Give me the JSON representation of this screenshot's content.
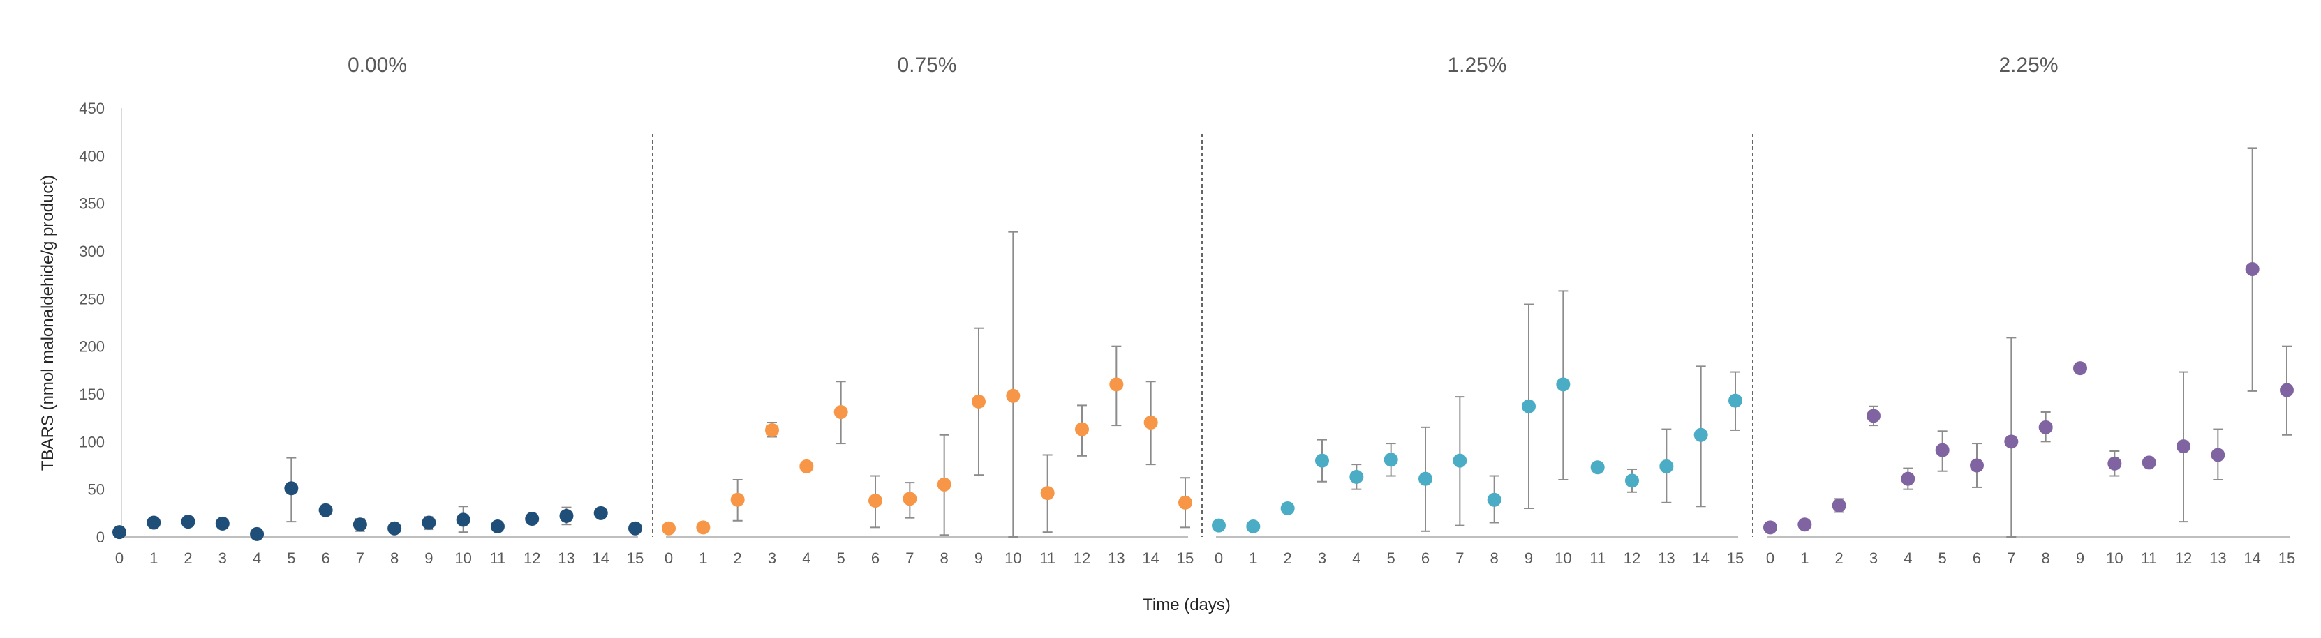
{
  "chart_data": {
    "type": "scatter",
    "xlabel": "Time (days)",
    "ylabel": "TBARS (nmol malonaldehide/g  product)",
    "ylim": [
      0,
      450
    ],
    "yticks": [
      0,
      50,
      100,
      150,
      200,
      250,
      300,
      350,
      400,
      450
    ],
    "x": [
      0,
      1,
      2,
      3,
      4,
      5,
      6,
      7,
      8,
      9,
      10,
      11,
      12,
      13,
      14,
      15
    ],
    "grid": false,
    "error_bars": true,
    "series": [
      {
        "name": "0.00%",
        "color": "#1f4e79",
        "values": [
          5,
          15,
          16,
          14,
          3,
          51,
          28,
          13,
          9,
          15,
          18,
          11,
          19,
          22,
          25,
          9
        ],
        "err_low": [
          5,
          15,
          16,
          14,
          3,
          16,
          28,
          6,
          9,
          8,
          5,
          11,
          19,
          13,
          25,
          9
        ],
        "err_high": [
          5,
          15,
          16,
          14,
          3,
          83,
          28,
          19,
          9,
          21,
          32,
          11,
          19,
          31,
          25,
          9
        ]
      },
      {
        "name": "0.75%",
        "color": "#f79646",
        "values": [
          9,
          10,
          39,
          112,
          74,
          131,
          38,
          40,
          55,
          142,
          148,
          46,
          113,
          160,
          120,
          36
        ],
        "err_low": [
          9,
          10,
          17,
          105,
          74,
          98,
          10,
          20,
          2,
          65,
          0,
          5,
          85,
          117,
          76,
          10
        ],
        "err_high": [
          9,
          10,
          60,
          120,
          74,
          163,
          64,
          57,
          107,
          219,
          320,
          86,
          138,
          200,
          163,
          62
        ]
      },
      {
        "name": "1.25%",
        "color": "#4bacc6",
        "values": [
          12,
          11,
          30,
          80,
          63,
          81,
          61,
          80,
          39,
          137,
          160,
          73,
          59,
          74,
          107,
          143
        ],
        "err_low": [
          12,
          11,
          30,
          58,
          50,
          64,
          6,
          12,
          15,
          30,
          60,
          73,
          47,
          36,
          32,
          112
        ],
        "err_high": [
          12,
          11,
          30,
          102,
          76,
          98,
          115,
          147,
          64,
          244,
          258,
          73,
          71,
          113,
          179,
          173
        ]
      },
      {
        "name": "2.25%",
        "color": "#8064a2",
        "values": [
          10,
          13,
          33,
          127,
          61,
          91,
          75,
          100,
          115,
          177,
          77,
          78,
          95,
          86,
          281,
          154
        ],
        "err_low": [
          10,
          13,
          26,
          117,
          50,
          69,
          52,
          0,
          100,
          177,
          64,
          78,
          16,
          60,
          153,
          107
        ],
        "err_high": [
          10,
          13,
          40,
          137,
          72,
          111,
          98,
          209,
          131,
          177,
          90,
          78,
          173,
          113,
          408,
          200
        ]
      }
    ]
  }
}
